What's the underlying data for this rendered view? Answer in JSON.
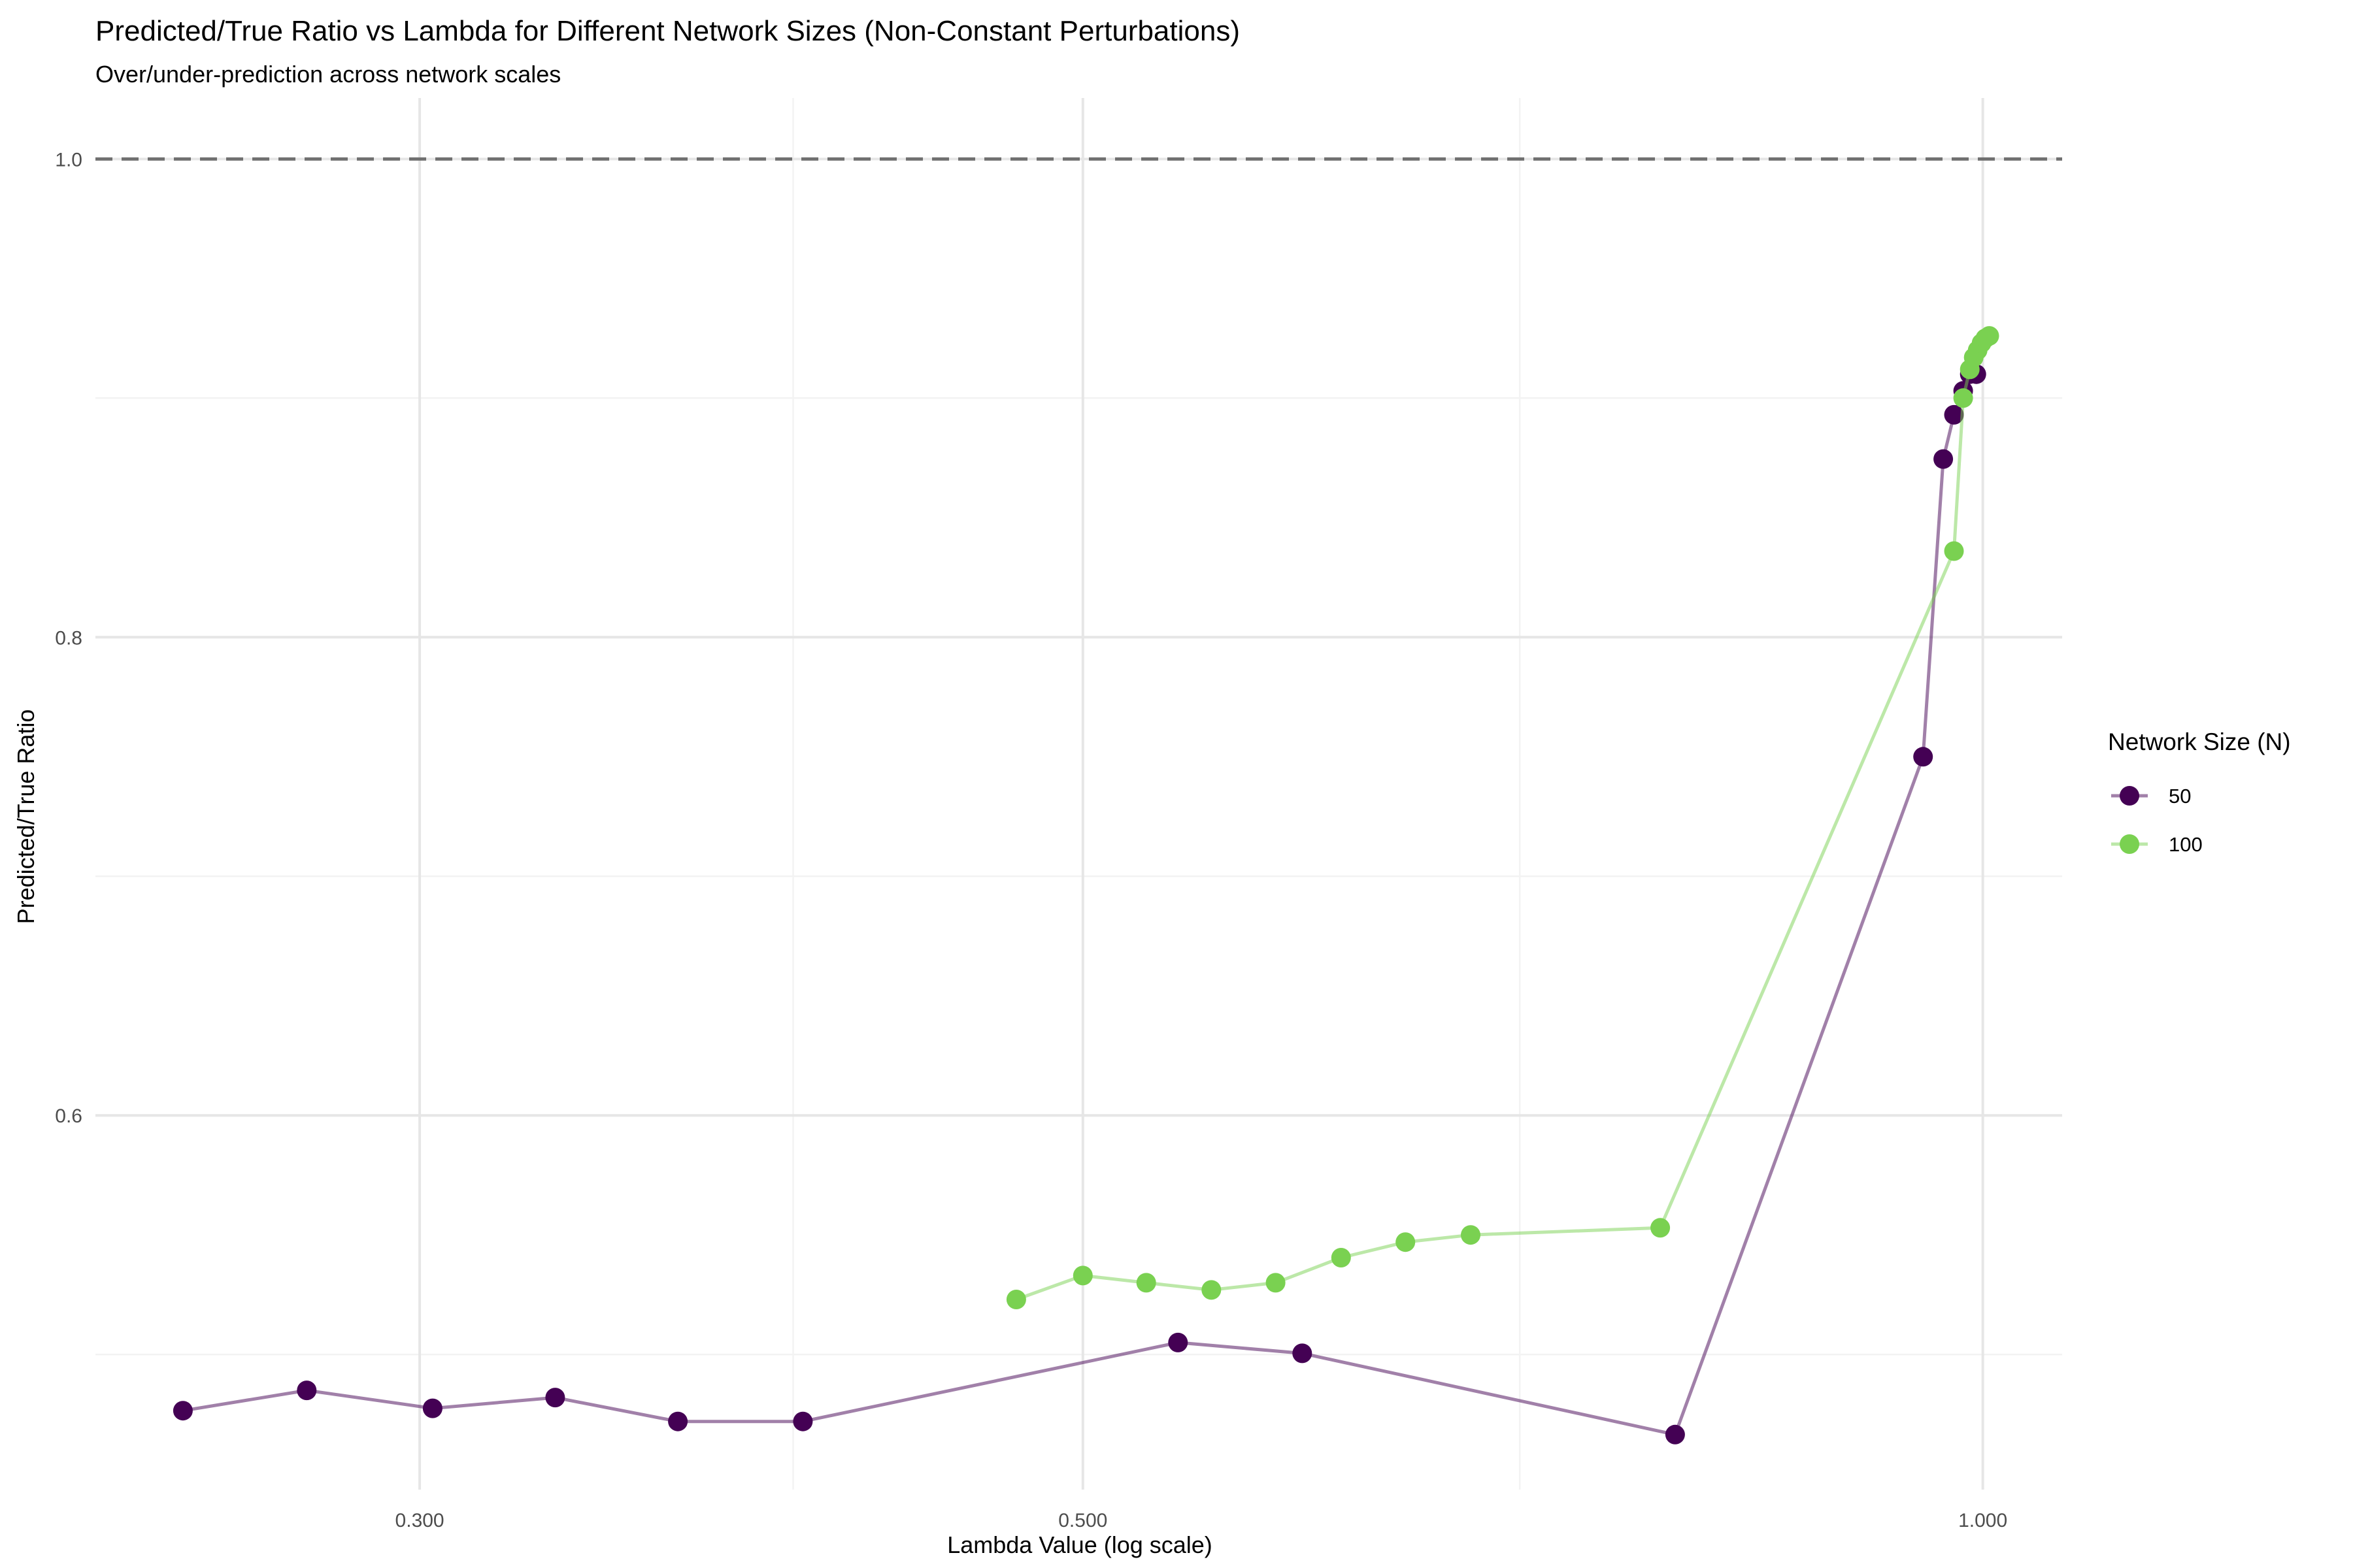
{
  "chart_data": {
    "type": "line",
    "title": "Predicted/True Ratio vs Lambda for Different Network Sizes (Non-Constant Perturbations)",
    "subtitle": "Over/under-prediction across network scales",
    "xlabel": "Lambda Value (log scale)",
    "ylabel": "Predicted/True Ratio",
    "x_scale": "log",
    "xlim": [
      0.2337,
      1.063
    ],
    "ylim": [
      0.4435,
      1.0255
    ],
    "x_ticks": [
      0.3,
      0.5,
      1.0
    ],
    "x_tick_labels": [
      "0.300",
      "0.500",
      "1.000"
    ],
    "x_minor_ticks": [
      0.4,
      0.7
    ],
    "y_ticks": [
      0.6,
      0.8,
      1.0
    ],
    "y_tick_labels": [
      "0.6",
      "0.8",
      "1.0"
    ],
    "y_minor_ticks": [
      0.5,
      0.7,
      0.9
    ],
    "reference_line": {
      "y": 1.0,
      "style": "dashed",
      "color": "#707070"
    },
    "grid": true,
    "legend": {
      "title": "Network Size (N)",
      "position": "right"
    },
    "series": [
      {
        "name": "50",
        "color": "#440154",
        "points": [
          {
            "x": 0.25,
            "y": 0.4765
          },
          {
            "x": 0.275,
            "y": 0.485
          },
          {
            "x": 0.303,
            "y": 0.4775
          },
          {
            "x": 0.333,
            "y": 0.482
          },
          {
            "x": 0.366,
            "y": 0.472
          },
          {
            "x": 0.403,
            "y": 0.472
          },
          {
            "x": 0.538,
            "y": 0.505
          },
          {
            "x": 0.592,
            "y": 0.5005
          },
          {
            "x": 0.789,
            "y": 0.4665
          },
          {
            "x": 0.955,
            "y": 0.75
          },
          {
            "x": 0.97,
            "y": 0.8745
          },
          {
            "x": 0.978,
            "y": 0.893
          },
          {
            "x": 0.985,
            "y": 0.903
          },
          {
            "x": 0.99,
            "y": 0.91
          },
          {
            "x": 0.995,
            "y": 0.91
          }
        ]
      },
      {
        "name": "100",
        "color": "#7AD151",
        "points": [
          {
            "x": 0.475,
            "y": 0.523
          },
          {
            "x": 0.5,
            "y": 0.533
          },
          {
            "x": 0.525,
            "y": 0.53
          },
          {
            "x": 0.552,
            "y": 0.527
          },
          {
            "x": 0.58,
            "y": 0.53
          },
          {
            "x": 0.61,
            "y": 0.5405
          },
          {
            "x": 0.641,
            "y": 0.547
          },
          {
            "x": 0.674,
            "y": 0.55
          },
          {
            "x": 0.78,
            "y": 0.553
          },
          {
            "x": 0.978,
            "y": 0.836
          },
          {
            "x": 0.985,
            "y": 0.9
          },
          {
            "x": 0.99,
            "y": 0.912
          },
          {
            "x": 0.993,
            "y": 0.917
          },
          {
            "x": 0.996,
            "y": 0.92
          },
          {
            "x": 0.999,
            "y": 0.923
          },
          {
            "x": 1.002,
            "y": 0.925
          },
          {
            "x": 1.005,
            "y": 0.926
          }
        ]
      }
    ]
  }
}
